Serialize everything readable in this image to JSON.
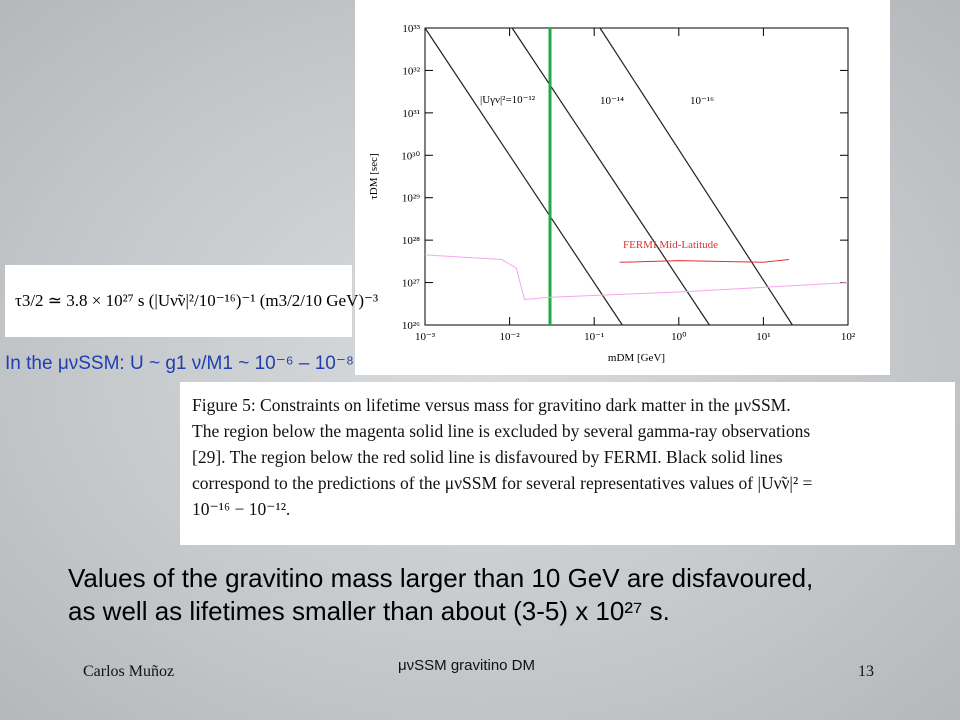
{
  "chart_data": {
    "type": "line",
    "xlog": true,
    "ylog": true,
    "xlabel": "mDM [GeV]",
    "ylabel": "τDM [sec]",
    "xlim": [
      0.001,
      100
    ],
    "ylim": [
      1e+26,
      1e+33
    ],
    "xticks": [
      {
        "value": 0.001,
        "label": "10⁻³"
      },
      {
        "value": 0.01,
        "label": "10⁻²"
      },
      {
        "value": 0.1,
        "label": "10⁻¹"
      },
      {
        "value": 1,
        "label": "10⁰"
      },
      {
        "value": 10,
        "label": "10¹"
      },
      {
        "value": 100,
        "label": "10²"
      }
    ],
    "yticks": [
      {
        "value": 1e+26,
        "label": "10²⁶"
      },
      {
        "value": 1e+27,
        "label": "10²⁷"
      },
      {
        "value": 1e+28,
        "label": "10²⁸"
      },
      {
        "value": 1e+29,
        "label": "10²⁹"
      },
      {
        "value": 1e+30,
        "label": "10³⁰"
      },
      {
        "value": 1e+31,
        "label": "10³¹"
      },
      {
        "value": 1e+32,
        "label": "10³²"
      },
      {
        "value": 1e+33,
        "label": "10³³"
      }
    ],
    "series": [
      {
        "name": "|Uγν|²=10⁻¹²",
        "color": "#222222",
        "x": [
          0.001,
          0.215
        ],
        "values": [
          1e+33,
          1e+26
        ]
      },
      {
        "name": "10⁻¹⁴",
        "color": "#222222",
        "x": [
          0.0107,
          2.3
        ],
        "values": [
          1e+33,
          1e+26
        ]
      },
      {
        "name": "10⁻¹⁶",
        "color": "#222222",
        "x": [
          0.117,
          22
        ],
        "values": [
          1e+33,
          1e+26
        ]
      },
      {
        "color": "#22aa44",
        "x": [
          0.03,
          0.03
        ],
        "values": [
          1e+26,
          1e+33
        ]
      },
      {
        "color": "#f4a6f0",
        "x": [
          0.001,
          0.008,
          0.012,
          0.015,
          0.03,
          1,
          100
        ],
        "values": [
          4.5e+27,
          3.5e+27,
          2.2e+27,
          4e+26,
          4.5e+26,
          6e+26,
          1e+27
        ]
      },
      {
        "name": "FERMI Mid-Latitude",
        "color": "#e03030",
        "x": [
          0.2,
          1,
          10,
          20
        ],
        "values": [
          3e+27,
          3.3e+27,
          3e+27,
          3.5e+27
        ]
      }
    ]
  },
  "equation": "τ3/2 ≃ 3.8 × 10²⁷ s (|Uν̃ν|²/10⁻¹⁶)⁻¹ (m3/2/10 GeV)⁻³",
  "intro": "In the μνSSM:  U ~ g1 ν/M1 ~ 10⁻⁶ – 10⁻⁸",
  "caption": [
    "Figure 5: Constraints on lifetime versus mass for gravitino dark matter in the μνSSM.",
    "The region below the magenta solid line is excluded by several gamma-ray observations",
    "[29].  The region below the red solid line is disfavoured by FERMI. Black solid lines",
    "correspond to the predictions of the μνSSM for several representatives values of |Uν̃ν|² =",
    "10⁻¹⁶ − 10⁻¹²."
  ],
  "conclusion": [
    "Values of the gravitino mass larger than 10 GeV are disfavoured,",
    "as well as lifetimes smaller than about (3-5) x 10²⁷ s."
  ],
  "footer": {
    "author": "Carlos Muñoz",
    "title": "μνSSM gravitino DM",
    "page": "13"
  }
}
